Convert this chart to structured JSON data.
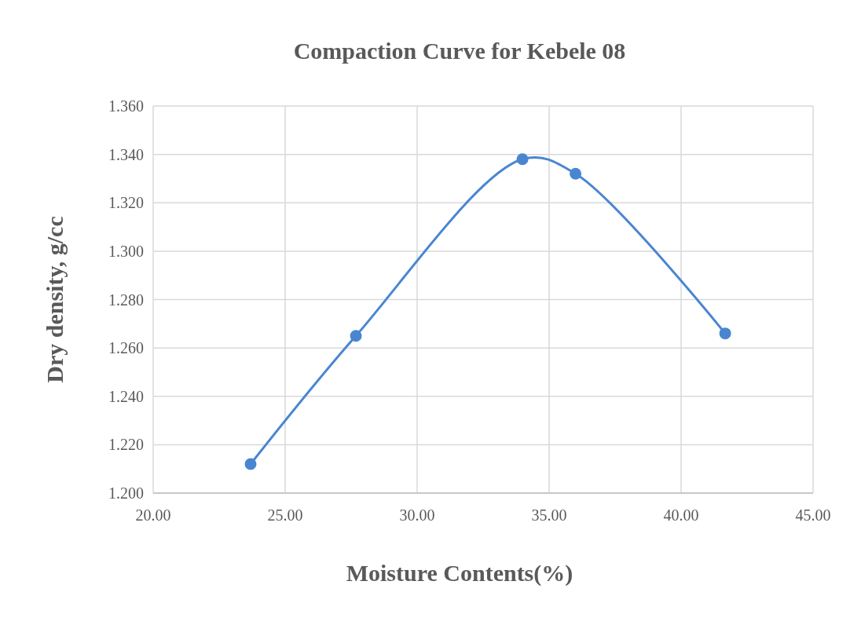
{
  "chart_data": {
    "type": "line",
    "title": "Compaction Curve for Kebele 08",
    "xlabel": "Moisture Contents(%)",
    "ylabel": "Dry density, g/cc",
    "x": [
      23.69,
      27.68,
      33.99,
      36.0,
      41.67
    ],
    "series": [
      {
        "color": "#4a86d0",
        "values": [
          1.212,
          1.265,
          1.338,
          1.332,
          1.266
        ]
      }
    ],
    "xlim": [
      20,
      45
    ],
    "xticks": [
      {
        "value": 20,
        "label": "20.00"
      },
      {
        "value": 25,
        "label": "25.00"
      },
      {
        "value": 30,
        "label": "30.00"
      },
      {
        "value": 35,
        "label": "35.00"
      },
      {
        "value": 40,
        "label": "40.00"
      },
      {
        "value": 45,
        "label": "45.00"
      }
    ],
    "ylim": [
      1.2,
      1.36
    ],
    "yticks": [
      {
        "value": 1.2,
        "label": "1.200"
      },
      {
        "value": 1.22,
        "label": "1.220"
      },
      {
        "value": 1.24,
        "label": "1.240"
      },
      {
        "value": 1.26,
        "label": "1.260"
      },
      {
        "value": 1.28,
        "label": "1.280"
      },
      {
        "value": 1.3,
        "label": "1.300"
      },
      {
        "value": 1.32,
        "label": "1.320"
      },
      {
        "value": 1.34,
        "label": "1.340"
      },
      {
        "value": 1.36,
        "label": "1.360"
      }
    ],
    "grid": true,
    "marker": "circle",
    "line_style": "solid"
  }
}
